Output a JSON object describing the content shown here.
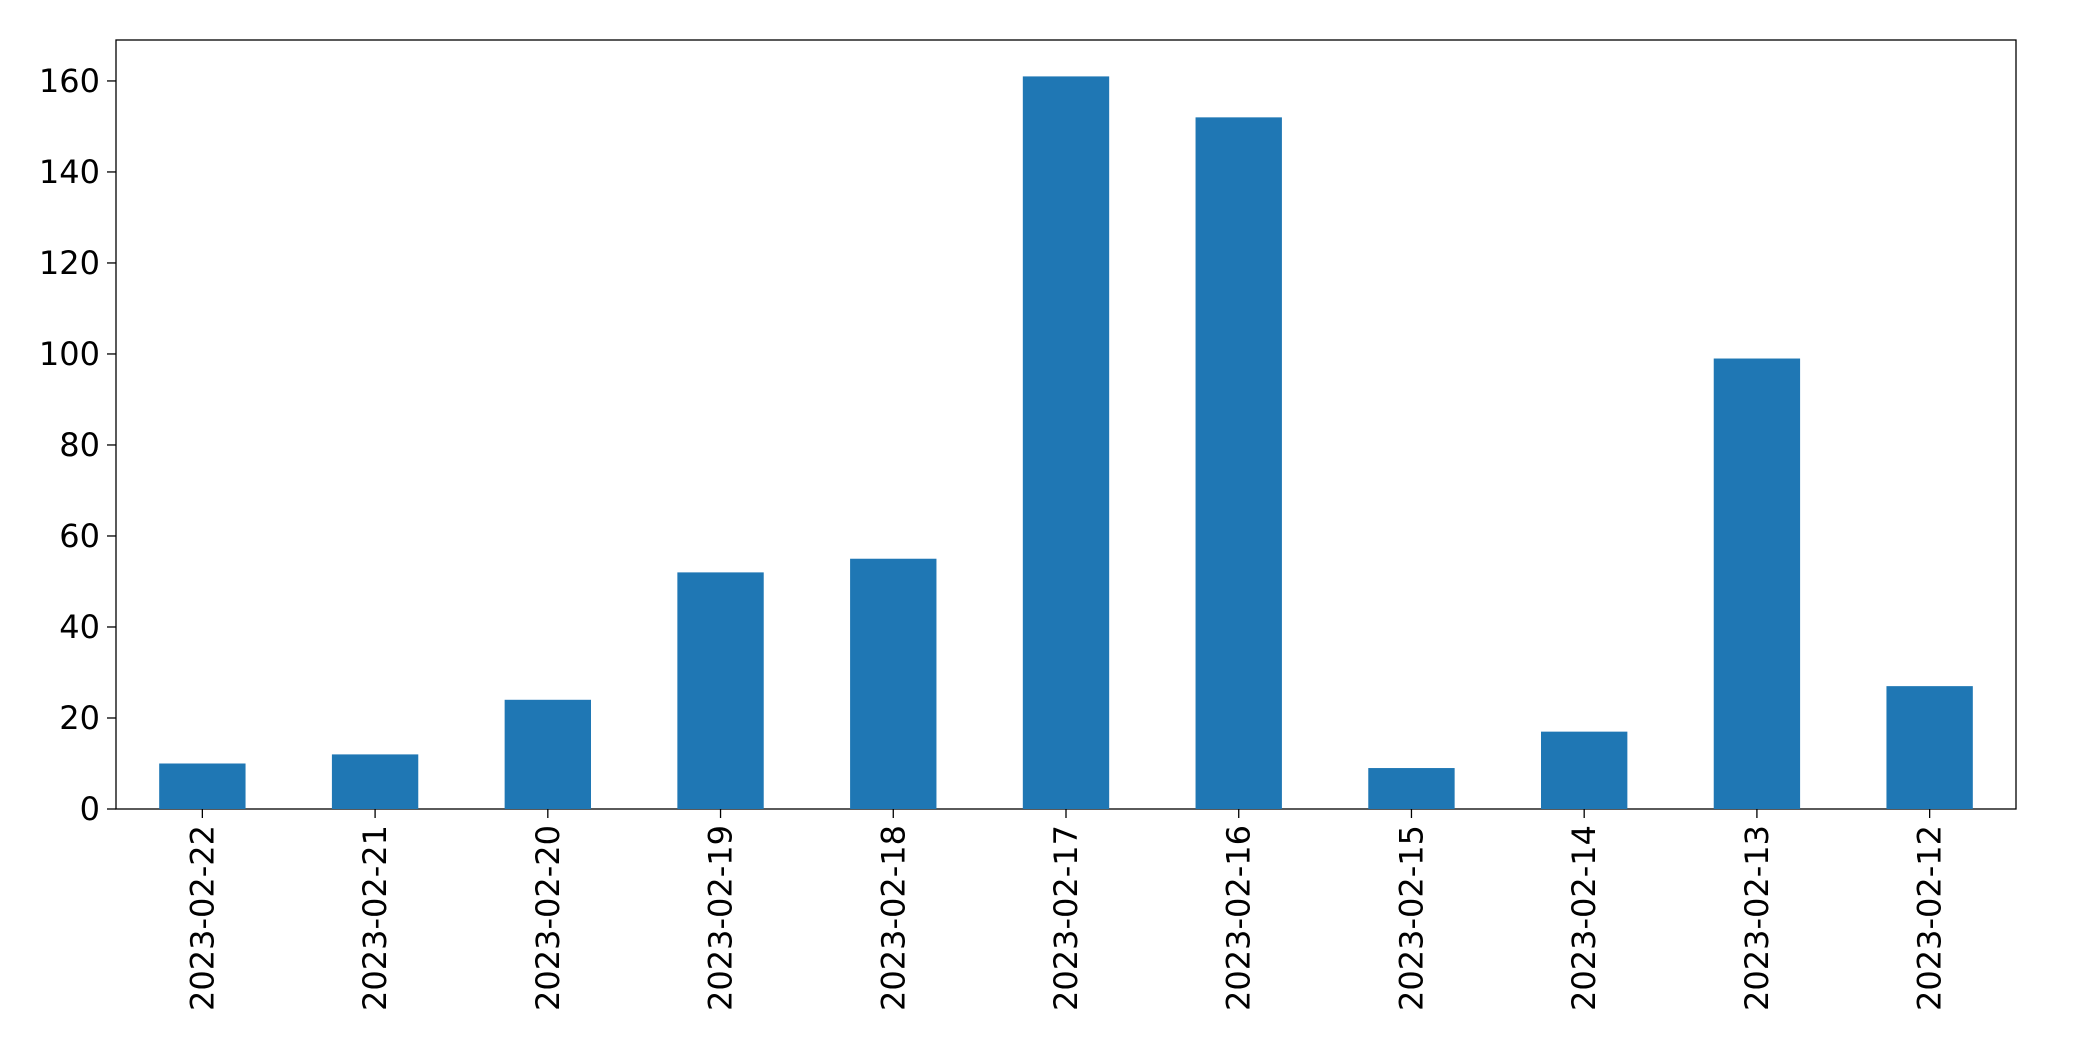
{
  "chart_data": {
    "type": "bar",
    "categories": [
      "2023-02-22",
      "2023-02-21",
      "2023-02-20",
      "2023-02-19",
      "2023-02-18",
      "2023-02-17",
      "2023-02-16",
      "2023-02-15",
      "2023-02-14",
      "2023-02-13",
      "2023-02-12"
    ],
    "values": [
      10,
      12,
      24,
      52,
      55,
      161,
      152,
      9,
      17,
      99,
      27
    ],
    "color": "#1f77b4",
    "ylim": [
      0,
      169
    ],
    "yticks": [
      0,
      20,
      40,
      60,
      80,
      100,
      120,
      140,
      160
    ],
    "grid": false
  }
}
